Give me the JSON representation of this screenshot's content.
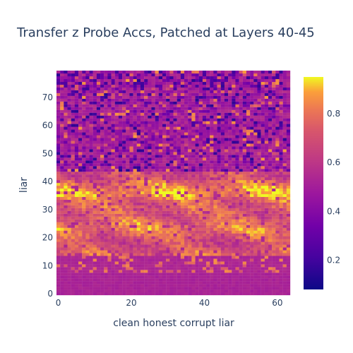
{
  "chart_data": {
    "type": "heatmap",
    "title": "Transfer z Probe Accs, Patched at Layers 40-45",
    "xlabel": "clean honest corrupt liar",
    "ylabel": "liar",
    "x_range": [
      0,
      63
    ],
    "y_range": [
      0,
      79
    ],
    "x_ticks": [
      "0",
      "20",
      "40",
      "60"
    ],
    "y_ticks": [
      "0",
      "10",
      "20",
      "30",
      "40",
      "50",
      "60",
      "70"
    ],
    "colorbar": {
      "min": 0.08,
      "max": 0.95,
      "ticks": [
        "0.2",
        "0.4",
        "0.6",
        "0.8"
      ],
      "colorscale": "Plasma"
    },
    "band_summary": [
      {
        "rows": "0-13",
        "typical_value": 0.5
      },
      {
        "rows": "14-43",
        "typical_value": 0.8
      },
      {
        "rows": "44-79",
        "typical_value": 0.4
      }
    ]
  }
}
